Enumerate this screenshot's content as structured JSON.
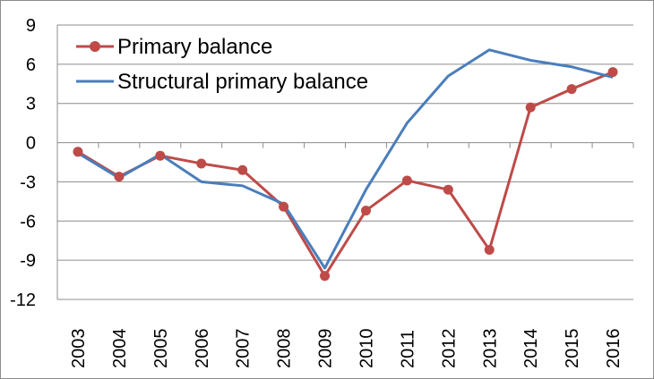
{
  "chart_data": {
    "type": "line",
    "title": "",
    "xlabel": "",
    "ylabel": "",
    "categories": [
      "2003",
      "2004",
      "2005",
      "2006",
      "2007",
      "2008",
      "2009",
      "2010",
      "2011",
      "2012",
      "2013",
      "2014",
      "2015",
      "2016"
    ],
    "ylim": [
      -12,
      9
    ],
    "yticks": [
      9,
      6,
      3,
      0,
      -3,
      -6,
      -9,
      -12
    ],
    "grid": "horizontal",
    "legend": "top-left",
    "series": [
      {
        "name": "Primary balance",
        "color": "#be4b48",
        "markers": true,
        "values": [
          -0.7,
          -2.6,
          -1.0,
          -1.6,
          -2.1,
          -4.9,
          -10.2,
          -5.2,
          -2.9,
          -3.6,
          -8.2,
          2.7,
          4.1,
          5.4
        ]
      },
      {
        "name": "Structural primary balance",
        "color": "#4a7ebb",
        "markers": false,
        "values": [
          -0.8,
          -2.7,
          -0.9,
          -3.0,
          -3.3,
          -4.7,
          -9.6,
          -3.6,
          1.5,
          5.1,
          7.1,
          6.3,
          5.8,
          5.0
        ]
      }
    ]
  }
}
